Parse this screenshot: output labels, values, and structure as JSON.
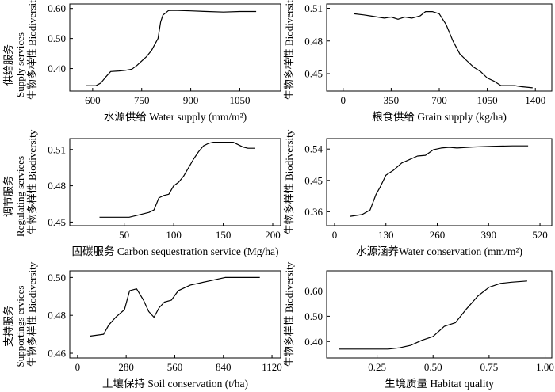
{
  "groups": [
    {
      "cn": "供给服务",
      "en": "Supply services"
    },
    {
      "cn": "调节服务",
      "en": "Regulating services"
    },
    {
      "cn": "支持服务",
      "en": "Supportings ervices"
    }
  ],
  "chart_data": [
    {
      "type": "line",
      "xlabel": "水源供给 Water supply (mm/m²)",
      "ylabel": "生物多样性 Biodiversity",
      "xticks": [
        600,
        750,
        900,
        1050
      ],
      "yticks": [
        "0.40",
        "0.50",
        "0.60"
      ],
      "xlim": [
        530,
        1175
      ],
      "ylim": [
        0.325,
        0.615
      ],
      "x": [
        580,
        610,
        625,
        640,
        655,
        680,
        700,
        720,
        735,
        750,
        765,
        780,
        790,
        800,
        808,
        815,
        823,
        832,
        850,
        900,
        950,
        1000,
        1050,
        1100
      ],
      "y": [
        0.343,
        0.343,
        0.352,
        0.372,
        0.39,
        0.392,
        0.394,
        0.398,
        0.41,
        0.425,
        0.44,
        0.46,
        0.48,
        0.5,
        0.555,
        0.578,
        0.585,
        0.593,
        0.594,
        0.592,
        0.59,
        0.588,
        0.59,
        0.59
      ]
    },
    {
      "type": "line",
      "xlabel": "粮食供给 Grain supply (kg/ha)",
      "ylabel": "生物多样性 Biodiversity",
      "xticks": [
        0,
        350,
        700,
        1050,
        1400
      ],
      "yticks": [
        "0.45",
        "0.48",
        "0.51"
      ],
      "xlim": [
        -120,
        1520
      ],
      "ylim": [
        0.434,
        0.514
      ],
      "x": [
        80,
        150,
        200,
        250,
        300,
        350,
        400,
        450,
        500,
        560,
        600,
        650,
        700,
        750,
        800,
        850,
        900,
        950,
        1000,
        1050,
        1100,
        1150,
        1200,
        1250,
        1300,
        1380
      ],
      "y": [
        0.505,
        0.504,
        0.503,
        0.502,
        0.501,
        0.502,
        0.5,
        0.502,
        0.501,
        0.503,
        0.507,
        0.507,
        0.505,
        0.495,
        0.48,
        0.468,
        0.462,
        0.456,
        0.452,
        0.446,
        0.443,
        0.439,
        0.439,
        0.439,
        0.438,
        0.437
      ]
    },
    {
      "type": "line",
      "xlabel": "固碳服务 Carbon sequestration service (Mg/ha)",
      "ylabel": "生物多样性 Biodiversity",
      "xticks": [
        50,
        100,
        150,
        200
      ],
      "yticks": [
        "0.45",
        "0.48",
        "0.51"
      ],
      "xlim": [
        -5,
        208
      ],
      "ylim": [
        0.447,
        0.519
      ],
      "x": [
        25,
        55,
        65,
        75,
        80,
        85,
        90,
        95,
        100,
        105,
        110,
        115,
        120,
        125,
        130,
        135,
        140,
        150,
        160,
        165,
        170,
        175,
        182
      ],
      "y": [
        0.454,
        0.454,
        0.456,
        0.458,
        0.46,
        0.47,
        0.472,
        0.473,
        0.48,
        0.483,
        0.488,
        0.495,
        0.502,
        0.508,
        0.513,
        0.515,
        0.516,
        0.516,
        0.516,
        0.514,
        0.512,
        0.511,
        0.511
      ]
    },
    {
      "type": "line",
      "xlabel": "水源涵养Water conservation (mm/m²)",
      "ylabel": "生物多样性 Biodiversity",
      "xticks": [
        0,
        130,
        260,
        390,
        520
      ],
      "yticks": [
        "0.36",
        "0.45",
        "0.54"
      ],
      "xlim": [
        -20,
        550
      ],
      "ylim": [
        0.32,
        0.57
      ],
      "x": [
        40,
        70,
        90,
        105,
        115,
        130,
        150,
        170,
        190,
        210,
        230,
        250,
        270,
        290,
        310,
        350,
        400,
        450,
        490
      ],
      "y": [
        0.347,
        0.352,
        0.365,
        0.41,
        0.43,
        0.465,
        0.48,
        0.5,
        0.51,
        0.52,
        0.522,
        0.538,
        0.543,
        0.545,
        0.543,
        0.546,
        0.548,
        0.549,
        0.549
      ]
    },
    {
      "type": "line",
      "xlabel": "土壤保持 Soil conservation (t/ha)",
      "ylabel": "生物多样性 Biodiversity",
      "xticks": [
        0,
        280,
        560,
        840,
        1120
      ],
      "yticks": [
        "0.46",
        "0.48",
        "0.50"
      ],
      "xlim": [
        -45,
        1170
      ],
      "ylim": [
        0.4575,
        0.5035
      ],
      "x": [
        70,
        150,
        180,
        220,
        270,
        300,
        340,
        380,
        410,
        440,
        470,
        500,
        540,
        580,
        650,
        750,
        850,
        1050
      ],
      "y": [
        0.469,
        0.47,
        0.475,
        0.479,
        0.483,
        0.493,
        0.494,
        0.488,
        0.482,
        0.479,
        0.484,
        0.487,
        0.488,
        0.493,
        0.496,
        0.498,
        0.5,
        0.5
      ]
    },
    {
      "type": "line",
      "xlabel": "生境质量 Habitat quality",
      "ylabel": "生物多样性 Biodiversity",
      "xticks": [
        "0.25",
        "0.50",
        "0.75",
        "1.00"
      ],
      "yticks": [
        "0.40",
        "0.50",
        "0.60"
      ],
      "xlim": [
        0.025,
        1.03
      ],
      "ylim": [
        0.335,
        0.68
      ],
      "x": [
        0.08,
        0.2,
        0.3,
        0.35,
        0.4,
        0.45,
        0.5,
        0.55,
        0.6,
        0.65,
        0.7,
        0.75,
        0.8,
        0.85,
        0.92
      ],
      "y": [
        0.37,
        0.37,
        0.37,
        0.375,
        0.385,
        0.405,
        0.42,
        0.46,
        0.475,
        0.53,
        0.58,
        0.615,
        0.63,
        0.635,
        0.64
      ]
    }
  ]
}
